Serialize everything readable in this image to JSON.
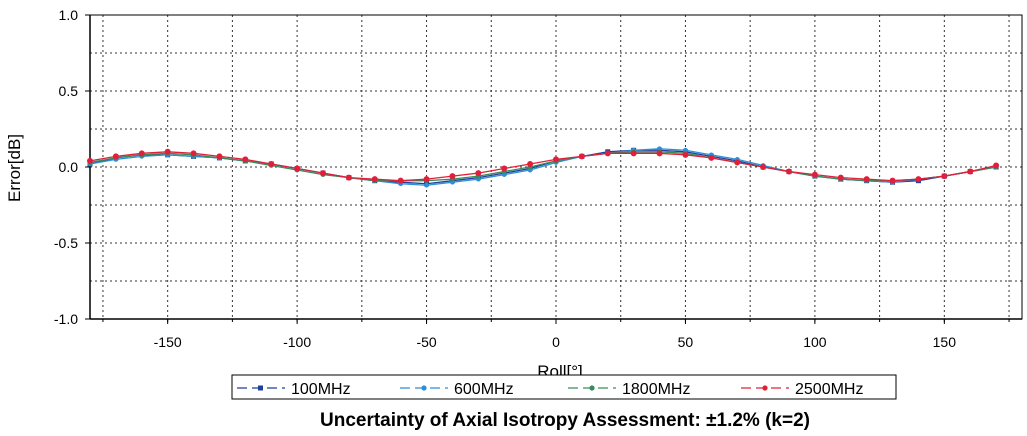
{
  "chart_data": {
    "type": "line",
    "title": "",
    "xlabel": "Roll[°]",
    "ylabel": "Error[dB]",
    "xlim": [
      -180,
      180
    ],
    "ylim": [
      -1.0,
      1.0
    ],
    "x_ticks": [
      -150,
      -100,
      -50,
      0,
      50,
      100,
      150
    ],
    "x_tick_labels": [
      "-150",
      "-100",
      "-50",
      "0",
      "50",
      "100",
      "150"
    ],
    "y_ticks": [
      1.0,
      0.5,
      0.0,
      -0.5,
      -1.0
    ],
    "y_tick_labels": [
      "1.0",
      "0.5",
      "0.0",
      "-0.5",
      "-1.0"
    ],
    "grid": true,
    "legend_position": "bottom",
    "x": [
      -180,
      -170,
      -160,
      -150,
      -140,
      -130,
      -120,
      -110,
      -100,
      -90,
      -80,
      -70,
      -60,
      -50,
      -40,
      -30,
      -20,
      -10,
      0,
      10,
      20,
      30,
      40,
      50,
      60,
      70,
      80,
      90,
      100,
      110,
      120,
      130,
      140,
      150,
      160,
      170
    ],
    "series": [
      {
        "name": "100MHz",
        "color": "#1f3f9c",
        "marker": "square",
        "values": [
          0.02,
          0.06,
          0.08,
          0.08,
          0.07,
          0.06,
          0.04,
          0.02,
          -0.01,
          -0.04,
          -0.07,
          -0.09,
          -0.1,
          -0.11,
          -0.09,
          -0.07,
          -0.04,
          -0.01,
          0.04,
          0.07,
          0.1,
          0.11,
          0.11,
          0.1,
          0.07,
          0.04,
          0.0,
          -0.03,
          -0.06,
          -0.08,
          -0.09,
          -0.1,
          -0.09,
          -0.06,
          -0.03,
          0.0
        ]
      },
      {
        "name": "600MHz",
        "color": "#2e8fd6",
        "marker": "dot",
        "values": [
          0.02,
          0.05,
          0.07,
          0.08,
          0.07,
          0.06,
          0.04,
          0.02,
          -0.01,
          -0.04,
          -0.07,
          -0.09,
          -0.11,
          -0.12,
          -0.1,
          -0.08,
          -0.05,
          -0.02,
          0.03,
          0.07,
          0.09,
          0.11,
          0.12,
          0.11,
          0.08,
          0.05,
          0.01,
          -0.03,
          -0.06,
          -0.08,
          -0.09,
          -0.1,
          -0.08,
          -0.06,
          -0.03,
          0.0
        ]
      },
      {
        "name": "1800MHz",
        "color": "#3a8a5a",
        "marker": "dot",
        "values": [
          0.03,
          0.06,
          0.08,
          0.09,
          0.08,
          0.06,
          0.04,
          0.01,
          -0.02,
          -0.05,
          -0.07,
          -0.09,
          -0.09,
          -0.09,
          -0.08,
          -0.06,
          -0.03,
          0.0,
          0.04,
          0.07,
          0.09,
          0.1,
          0.1,
          0.09,
          0.06,
          0.03,
          0.0,
          -0.03,
          -0.06,
          -0.08,
          -0.09,
          -0.09,
          -0.08,
          -0.06,
          -0.03,
          0.0
        ]
      },
      {
        "name": "2500MHz",
        "color": "#e0203a",
        "marker": "dot",
        "values": [
          0.04,
          0.07,
          0.09,
          0.1,
          0.09,
          0.07,
          0.05,
          0.02,
          -0.01,
          -0.04,
          -0.07,
          -0.08,
          -0.09,
          -0.08,
          -0.06,
          -0.04,
          -0.01,
          0.02,
          0.05,
          0.07,
          0.09,
          0.09,
          0.09,
          0.08,
          0.06,
          0.03,
          0.0,
          -0.03,
          -0.05,
          -0.07,
          -0.08,
          -0.09,
          -0.08,
          -0.06,
          -0.03,
          0.01
        ]
      }
    ],
    "caption": "Uncertainty of Axial Isotropy Assessment: ±1.2% (k=2)"
  }
}
